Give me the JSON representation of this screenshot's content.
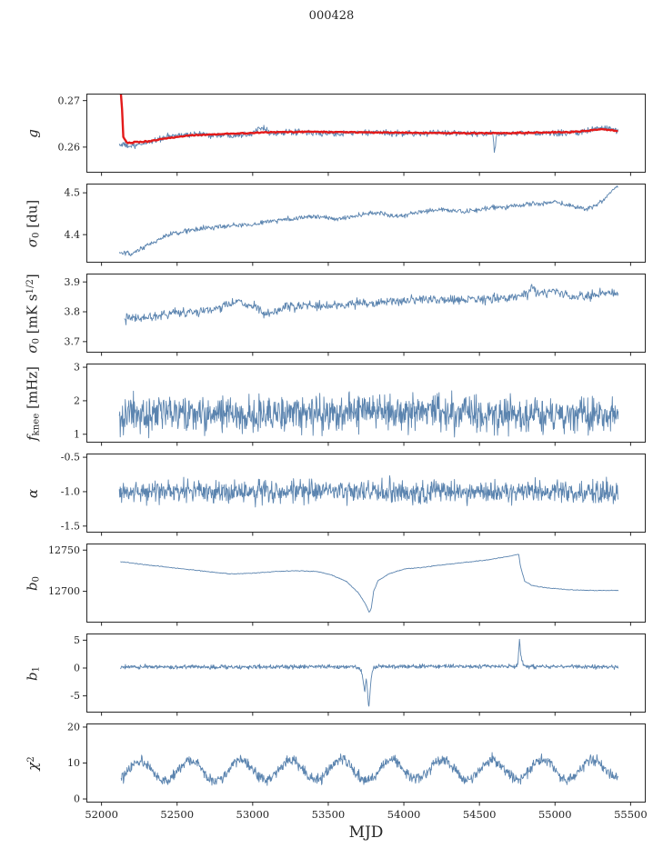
{
  "chart_data": {
    "type": "line",
    "title": "000428",
    "xlabel": "MJD",
    "xlim": [
      51900,
      55600
    ],
    "xticks": [
      52000,
      52500,
      53000,
      53500,
      54000,
      54500,
      55000,
      55500
    ],
    "axis_color": "#262626",
    "line_color": "#5b84af",
    "overlay_color": "#e31a1a",
    "panels": [
      {
        "id": "g",
        "ylabel": [
          {
            "t": "g",
            "i": 1
          }
        ],
        "ylim": [
          0.2545,
          0.2715
        ],
        "yticks": [
          {
            "v": 0.26,
            "label": "0.26"
          },
          {
            "v": 0.27,
            "label": "0.27"
          }
        ],
        "series": [
          {
            "name": "gain-raw",
            "color": "#5b84af",
            "width": 0.9,
            "step": 4,
            "noise": 0.00055,
            "xrange": [
              52118,
              55420
            ],
            "trend": [
              [
                52118,
                0.2606
              ],
              [
                52210,
                0.2601
              ],
              [
                52320,
                0.2612
              ],
              [
                52460,
                0.2624
              ],
              [
                52620,
                0.2628
              ],
              [
                52800,
                0.2625
              ],
              [
                53000,
                0.2629
              ],
              [
                53060,
                0.2646
              ],
              [
                53120,
                0.2629
              ],
              [
                53300,
                0.2632
              ],
              [
                53500,
                0.2629
              ],
              [
                53700,
                0.2631
              ],
              [
                53900,
                0.263
              ],
              [
                54100,
                0.2629
              ],
              [
                54300,
                0.2631
              ],
              [
                54450,
                0.2629
              ],
              [
                54588,
                0.2628
              ],
              [
                54600,
                0.2586
              ],
              [
                54615,
                0.2629
              ],
              [
                54800,
                0.263
              ],
              [
                55000,
                0.2629
              ],
              [
                55150,
                0.2632
              ],
              [
                55300,
                0.2641
              ],
              [
                55420,
                0.2636
              ]
            ]
          },
          {
            "name": "gain-smooth",
            "color": "#e31a1a",
            "width": 2.4,
            "step": 8,
            "noise": 0.0001,
            "xrange": [
              52120,
              55420
            ],
            "trend": [
              [
                52120,
                0.2715
              ],
              [
                52132,
                0.2714
              ],
              [
                52144,
                0.2622
              ],
              [
                52170,
                0.2609
              ],
              [
                52300,
                0.2612
              ],
              [
                52450,
                0.262
              ],
              [
                52600,
                0.2626
              ],
              [
                52800,
                0.2628
              ],
              [
                53100,
                0.2632
              ],
              [
                53400,
                0.2633
              ],
              [
                53700,
                0.2632
              ],
              [
                54000,
                0.2631
              ],
              [
                54300,
                0.263
              ],
              [
                54600,
                0.263
              ],
              [
                54900,
                0.2631
              ],
              [
                55150,
                0.2633
              ],
              [
                55320,
                0.2639
              ],
              [
                55420,
                0.2634
              ]
            ]
          }
        ]
      },
      {
        "id": "sigma0-du",
        "ylabel": [
          {
            "t": "σ",
            "i": 1
          },
          {
            "t": "0",
            "sub": 1
          },
          {
            "t": " [du]"
          }
        ],
        "ylim": [
          4.333,
          4.522
        ],
        "yticks": [
          {
            "v": 4.4,
            "label": "4.4"
          },
          {
            "v": 4.5,
            "label": "4.5"
          }
        ],
        "series": [
          {
            "name": "sigma0-du",
            "color": "#5b84af",
            "width": 0.9,
            "step": 4,
            "noise": 0.005,
            "xrange": [
              52118,
              55420
            ],
            "trend": [
              [
                52118,
                4.356
              ],
              [
                52200,
                4.353
              ],
              [
                52320,
                4.377
              ],
              [
                52430,
                4.398
              ],
              [
                52560,
                4.409
              ],
              [
                52700,
                4.416
              ],
              [
                52850,
                4.421
              ],
              [
                53000,
                4.424
              ],
              [
                53120,
                4.433
              ],
              [
                53260,
                4.438
              ],
              [
                53400,
                4.444
              ],
              [
                53540,
                4.437
              ],
              [
                53700,
                4.446
              ],
              [
                53840,
                4.453
              ],
              [
                53950,
                4.443
              ],
              [
                54100,
                4.453
              ],
              [
                54250,
                4.461
              ],
              [
                54400,
                4.453
              ],
              [
                54550,
                4.463
              ],
              [
                54700,
                4.468
              ],
              [
                54850,
                4.473
              ],
              [
                55000,
                4.478
              ],
              [
                55100,
                4.47
              ],
              [
                55200,
                4.462
              ],
              [
                55300,
                4.476
              ],
              [
                55400,
                4.513
              ],
              [
                55420,
                4.516
              ]
            ]
          }
        ]
      },
      {
        "id": "sigma0-mks",
        "ylabel": [
          {
            "t": "σ",
            "i": 1
          },
          {
            "t": "0",
            "sub": 1
          },
          {
            "t": " [mK s"
          },
          {
            "t": "1/2",
            "sup": 1
          },
          {
            "t": "]"
          }
        ],
        "ylim": [
          3.663,
          3.928
        ],
        "yticks": [
          {
            "v": 3.7,
            "label": "3.7"
          },
          {
            "v": 3.8,
            "label": "3.8"
          },
          {
            "v": 3.9,
            "label": "3.9"
          }
        ],
        "series": [
          {
            "name": "sigma0-mks",
            "color": "#5b84af",
            "width": 0.9,
            "step": 4,
            "noise": 0.013,
            "xrange": [
              52150,
              55420
            ],
            "trend": [
              [
                52150,
                3.775
              ],
              [
                52300,
                3.782
              ],
              [
                52450,
                3.795
              ],
              [
                52600,
                3.8
              ],
              [
                52750,
                3.808
              ],
              [
                52900,
                3.833
              ],
              [
                53000,
                3.82
              ],
              [
                53100,
                3.786
              ],
              [
                53200,
                3.812
              ],
              [
                53350,
                3.822
              ],
              [
                53500,
                3.818
              ],
              [
                53650,
                3.826
              ],
              [
                53800,
                3.83
              ],
              [
                53950,
                3.835
              ],
              [
                54100,
                3.84
              ],
              [
                54250,
                3.838
              ],
              [
                54400,
                3.842
              ],
              [
                54550,
                3.842
              ],
              [
                54700,
                3.848
              ],
              [
                54820,
                3.858
              ],
              [
                54850,
                3.89
              ],
              [
                54880,
                3.858
              ],
              [
                55000,
                3.868
              ],
              [
                55100,
                3.855
              ],
              [
                55200,
                3.848
              ],
              [
                55300,
                3.862
              ],
              [
                55420,
                3.865
              ]
            ]
          }
        ]
      },
      {
        "id": "fknee",
        "ylabel": [
          {
            "t": "f",
            "i": 1
          },
          {
            "t": "knee",
            "sub": 1
          },
          {
            "t": " [mHz]"
          }
        ],
        "ylim": [
          0.75,
          3.11
        ],
        "yticks": [
          {
            "v": 1,
            "label": "1"
          },
          {
            "v": 2,
            "label": "2"
          },
          {
            "v": 3,
            "label": "3"
          }
        ],
        "series": [
          {
            "name": "fknee",
            "color": "#5b84af",
            "width": 0.9,
            "step": 3,
            "noise": 0.45,
            "xrange": [
              52118,
              55420
            ],
            "trend": [
              [
                52118,
                1.58
              ],
              [
                53550,
                1.6
              ],
              [
                53780,
                1.78
              ],
              [
                53980,
                1.62
              ],
              [
                55420,
                1.58
              ]
            ]
          }
        ]
      },
      {
        "id": "alpha",
        "ylabel": [
          {
            "t": "α",
            "i": 1
          }
        ],
        "ylim": [
          -1.595,
          -0.446
        ],
        "yticks": [
          {
            "v": -1.5,
            "label": "-1.5"
          },
          {
            "v": -1.0,
            "label": "-1.0"
          },
          {
            "v": -0.5,
            "label": "-0.5"
          }
        ],
        "series": [
          {
            "name": "alpha",
            "color": "#5b84af",
            "width": 0.9,
            "step": 3,
            "noise": 0.14,
            "xrange": [
              52118,
              55420
            ],
            "trend": [
              [
                52118,
                -1.0
              ],
              [
                55420,
                -1.0
              ]
            ]
          }
        ]
      },
      {
        "id": "b0",
        "ylabel": [
          {
            "t": "b",
            "i": 1
          },
          {
            "t": "0",
            "sub": 1
          }
        ],
        "ylim": [
          12662,
          12758
        ],
        "yticks": [
          {
            "v": 12700,
            "label": "12700"
          },
          {
            "v": 12750,
            "label": "12750"
          }
        ],
        "series": [
          {
            "name": "b0",
            "color": "#5b84af",
            "width": 0.9,
            "step": 5,
            "noise": 0.35,
            "xrange": [
              52125,
              55420
            ],
            "trend": [
              [
                52125,
                12736
              ],
              [
                52300,
                12732
              ],
              [
                52500,
                12728
              ],
              [
                52700,
                12724
              ],
              [
                52850,
                12721
              ],
              [
                53000,
                12722
              ],
              [
                53150,
                12724
              ],
              [
                53300,
                12725
              ],
              [
                53420,
                12724
              ],
              [
                53520,
                12720
              ],
              [
                53620,
                12712
              ],
              [
                53700,
                12698
              ],
              [
                53745,
                12685
              ],
              [
                53772,
                12674
              ],
              [
                53785,
                12680
              ],
              [
                53800,
                12700
              ],
              [
                53830,
                12713
              ],
              [
                53900,
                12721
              ],
              [
                54000,
                12727
              ],
              [
                54120,
                12729
              ],
              [
                54250,
                12732
              ],
              [
                54400,
                12735
              ],
              [
                54550,
                12738
              ],
              [
                54680,
                12742
              ],
              [
                54760,
                12745
              ],
              [
                54772,
                12730
              ],
              [
                54800,
                12712
              ],
              [
                54850,
                12707
              ],
              [
                54950,
                12704
              ],
              [
                55080,
                12702
              ],
              [
                55250,
                12701
              ],
              [
                55420,
                12701
              ]
            ]
          }
        ]
      },
      {
        "id": "b1",
        "ylabel": [
          {
            "t": "b",
            "i": 1
          },
          {
            "t": "1",
            "sub": 1
          }
        ],
        "ylim": [
          -8,
          6.2
        ],
        "yticks": [
          {
            "v": -5,
            "label": "-5"
          },
          {
            "v": 0,
            "label": "0"
          },
          {
            "v": 5,
            "label": "5"
          }
        ],
        "series": [
          {
            "name": "b1",
            "color": "#5b84af",
            "width": 0.9,
            "step": 3,
            "noise": 0.3,
            "xrange": [
              52125,
              55420
            ],
            "trend": [
              [
                52125,
                0.2
              ],
              [
                53690,
                0.2
              ],
              [
                53720,
                -0.5
              ],
              [
                53740,
                -4.2
              ],
              [
                53752,
                -1.8
              ],
              [
                53768,
                -7.2
              ],
              [
                53782,
                -2.0
              ],
              [
                53800,
                0.0
              ],
              [
                53830,
                0.3
              ],
              [
                54740,
                0.3
              ],
              [
                54755,
                1.0
              ],
              [
                54765,
                5.2
              ],
              [
                54775,
                2.0
              ],
              [
                54790,
                0.5
              ],
              [
                54820,
                0.3
              ],
              [
                55420,
                0.2
              ]
            ]
          }
        ]
      },
      {
        "id": "chi2",
        "ylabel": [
          {
            "t": "χ",
            "i": 1
          },
          {
            "t": "2",
            "sup": 1
          }
        ],
        "ylim": [
          -1,
          21
        ],
        "yticks": [
          {
            "v": 0,
            "label": "0"
          },
          {
            "v": 10,
            "label": "10"
          },
          {
            "v": 20,
            "label": "20"
          }
        ],
        "series": [
          {
            "name": "chi2",
            "color": "#5b84af",
            "width": 0.9,
            "step": 3,
            "noise": 1.2,
            "xrange": [
              52130,
              55420
            ],
            "trend": [
              [
                52130,
                7.6
              ],
              [
                53000,
                8.0
              ],
              [
                55420,
                8.3
              ]
            ],
            "osc": {
              "amp": 2.8,
              "period": 333,
              "x0": 52170
            }
          }
        ]
      }
    ]
  }
}
